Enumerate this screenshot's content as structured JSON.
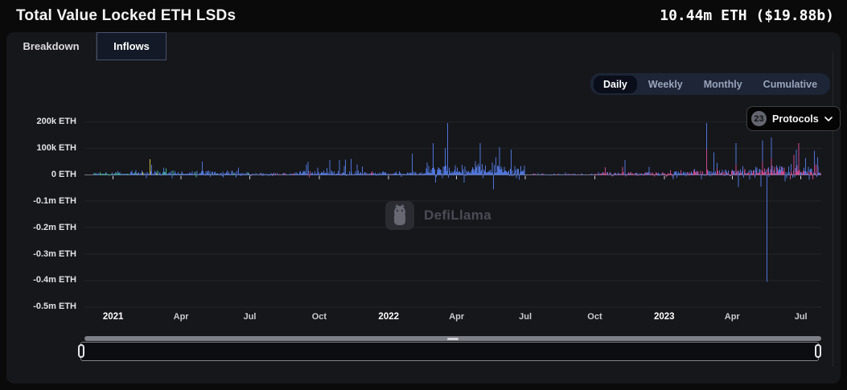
{
  "header": {
    "title": "Total Value Locked ETH LSDs",
    "value": "10.44m ETH ($19.88b)"
  },
  "tabs": [
    {
      "label": "Breakdown",
      "active": false
    },
    {
      "label": "Inflows",
      "active": true
    }
  ],
  "period_selector": {
    "options": [
      "Daily",
      "Weekly",
      "Monthly",
      "Cumulative"
    ],
    "active": "Daily"
  },
  "protocols_button": {
    "count": "23",
    "label": "Protocols"
  },
  "watermark": "DefiLlama",
  "chart_data": {
    "type": "bar",
    "title": "Total Value Locked ETH LSDs — Daily Inflows",
    "unit": "ETH",
    "grid": true,
    "legend_position": "none",
    "ylim": [
      -550000,
      230000
    ],
    "y_axis": {
      "ticks": [
        {
          "value": 200000,
          "label": "200k ETH"
        },
        {
          "value": 100000,
          "label": "100k ETH"
        },
        {
          "value": 0,
          "label": "0 ETH"
        },
        {
          "value": -100000,
          "label": "-0.1m ETH"
        },
        {
          "value": -200000,
          "label": "-0.2m ETH"
        },
        {
          "value": -300000,
          "label": "-0.3m ETH"
        },
        {
          "value": -400000,
          "label": "-0.4m ETH"
        },
        {
          "value": -500000,
          "label": "-0.5m ETH"
        }
      ]
    },
    "x_axis": {
      "start": "2020-11-24",
      "end": "2023-07-28",
      "bars_start": "2020-12-06",
      "ticks": [
        {
          "label": "2021",
          "date": "2021-01-01",
          "year": true
        },
        {
          "label": "Apr",
          "date": "2021-04-01"
        },
        {
          "label": "Jul",
          "date": "2021-07-01"
        },
        {
          "label": "Oct",
          "date": "2021-10-01"
        },
        {
          "label": "2022",
          "date": "2022-01-01",
          "year": true
        },
        {
          "label": "Apr",
          "date": "2022-04-01"
        },
        {
          "label": "Jul",
          "date": "2022-07-01"
        },
        {
          "label": "Oct",
          "date": "2022-10-01"
        },
        {
          "label": "2023",
          "date": "2023-01-01",
          "year": true
        },
        {
          "label": "Apr",
          "date": "2023-04-01"
        },
        {
          "label": "Jul",
          "date": "2023-07-01"
        }
      ]
    },
    "colors": {
      "blue": "#4f74d9",
      "pink": "#c9498b",
      "green": "#39b489",
      "yellow": "#c9c244"
    },
    "baseline_segments": [
      {
        "from": "2020-12-06",
        "to": "2021-01-25",
        "base": 6000,
        "peak": 32000,
        "negProb": 0.05,
        "colors": {
          "blue": 0.55,
          "green": 0.45
        }
      },
      {
        "from": "2021-01-25",
        "to": "2021-03-05",
        "base": 9000,
        "peak": 60000,
        "negProb": 0.05,
        "colors": {
          "blue": 0.75,
          "yellow": 0.15,
          "green": 0.1
        }
      },
      {
        "from": "2021-03-05",
        "to": "2021-07-01",
        "base": 9000,
        "peak": 55000,
        "negProb": 0.08,
        "colors": {
          "blue": 0.9,
          "green": 0.1
        }
      },
      {
        "from": "2021-07-01",
        "to": "2021-09-05",
        "base": 4000,
        "peak": 20000,
        "negProb": 0.1,
        "colors": {
          "blue": 0.8,
          "pink": 0.2
        }
      },
      {
        "from": "2021-09-05",
        "to": "2021-12-01",
        "base": 9000,
        "peak": 60000,
        "negProb": 0.06,
        "colors": {
          "blue": 0.95,
          "pink": 0.05
        }
      },
      {
        "from": "2021-12-01",
        "to": "2022-02-20",
        "base": 7000,
        "peak": 70000,
        "negProb": 0.06,
        "colors": {
          "blue": 0.9,
          "pink": 0.1
        }
      },
      {
        "from": "2022-02-20",
        "to": "2022-07-01",
        "base": 22000,
        "peak": 130000,
        "negProb": 0.08,
        "colors": {
          "blue": 1.0
        }
      },
      {
        "from": "2022-07-01",
        "to": "2022-10-05",
        "base": 2500,
        "peak": 9000,
        "negProb": 0.15,
        "colors": {
          "blue": 0.6,
          "pink": 0.4
        }
      },
      {
        "from": "2022-10-05",
        "to": "2023-01-15",
        "base": 6000,
        "peak": 30000,
        "negProb": 0.1,
        "colors": {
          "pink": 0.55,
          "blue": 0.45
        }
      },
      {
        "from": "2023-01-15",
        "to": "2023-04-12",
        "base": 12000,
        "peak": 80000,
        "negProb": 0.08,
        "colors": {
          "blue": 0.7,
          "pink": 0.3
        },
        "stack": true
      },
      {
        "from": "2023-04-12",
        "to": "2023-07-28",
        "base": 22000,
        "peak": 120000,
        "negProb": 0.28,
        "negScale": 0.5,
        "colors": {
          "blue": 0.65,
          "pink": 0.35
        },
        "stack": true
      }
    ],
    "spikes": [
      {
        "date": "2021-02-19",
        "value": 58000,
        "color": "yellow"
      },
      {
        "date": "2021-04-29",
        "value": 50000,
        "color": "blue"
      },
      {
        "date": "2021-10-28",
        "value": 55000,
        "color": "blue"
      },
      {
        "date": "2021-11-12",
        "value": 60000,
        "color": "blue"
      },
      {
        "date": "2022-02-01",
        "value": 80000,
        "color": "blue"
      },
      {
        "date": "2022-03-20",
        "value": 195000,
        "color": "blue"
      },
      {
        "date": "2022-05-02",
        "value": 120000,
        "color": "blue"
      },
      {
        "date": "2022-05-28",
        "value": 105000,
        "color": "blue"
      },
      {
        "date": "2022-06-12",
        "value": 95000,
        "color": "blue"
      },
      {
        "date": "2022-11-10",
        "value": 55000,
        "color": "blue"
      },
      {
        "date": "2023-02-26",
        "value": 195000,
        "color": "blue"
      },
      {
        "date": "2023-03-08",
        "value": 85000,
        "color": "blue"
      },
      {
        "date": "2023-04-06",
        "value": 120000,
        "color": "blue"
      },
      {
        "date": "2023-05-11",
        "value": 130000,
        "color": "blue"
      },
      {
        "date": "2023-05-17",
        "value": -405000,
        "color": "blue"
      },
      {
        "date": "2023-05-23",
        "value": 140000,
        "color": "blue"
      },
      {
        "date": "2023-06-25",
        "value": 95000,
        "color": "blue"
      },
      {
        "date": "2023-07-19",
        "value": 90000,
        "color": "blue"
      }
    ]
  }
}
